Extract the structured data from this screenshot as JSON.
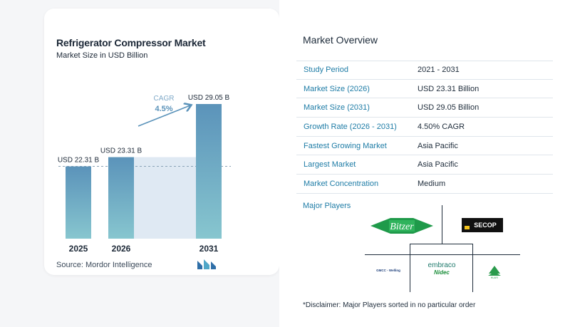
{
  "chart_card": {
    "title": "Refrigerator Compressor Market",
    "subtitle": "Market Size in USD Billion",
    "source": "Source:  Mordor Intelligence",
    "cagr_label": "CAGR",
    "cagr_value": "4.5%"
  },
  "chart_data": {
    "type": "bar",
    "title": "Refrigerator Compressor Market",
    "subtitle": "Market Size in USD Billion",
    "categories": [
      "2025",
      "2026",
      "2031"
    ],
    "values": [
      22.31,
      23.31,
      29.05
    ],
    "data_labels": [
      "USD 22.31 B",
      "USD 23.31 B",
      "USD 29.05 B"
    ],
    "annotation": {
      "label": "CAGR",
      "value": "4.5%"
    },
    "xlabel": "",
    "ylabel": "",
    "grid": false,
    "colors": {
      "bar_top": "#5b93ba",
      "bar_bottom": "#87c6cf",
      "shade": "#dfe9f3",
      "arrow": "#5b93ba"
    }
  },
  "overview": {
    "title": "Market Overview",
    "rows": [
      {
        "label": "Study Period",
        "value": "2021 - 2031"
      },
      {
        "label": "Market Size (2026)",
        "value": "USD 23.31 Billion"
      },
      {
        "label": "Market Size (2031)",
        "value": "USD 29.05 Billion"
      },
      {
        "label": "Growth Rate (2026 - 2031)",
        "value": "4.50% CAGR"
      },
      {
        "label": "Fastest Growing Market",
        "value": "Asia Pacific"
      },
      {
        "label": "Largest Market",
        "value": "Asia Pacific"
      },
      {
        "label": "Market Concentration",
        "value": "Medium"
      }
    ]
  },
  "players": {
    "title": "Major Players",
    "logos": {
      "bitzer": "Bitzer",
      "secop": "SECOP",
      "embraco": "embraco",
      "nidec": "Nidec",
      "gmcc": "GMCC - Welling",
      "huayi": "HUAYI"
    }
  },
  "disclaimer": "*Disclaimer: Major Players sorted in no particular order"
}
